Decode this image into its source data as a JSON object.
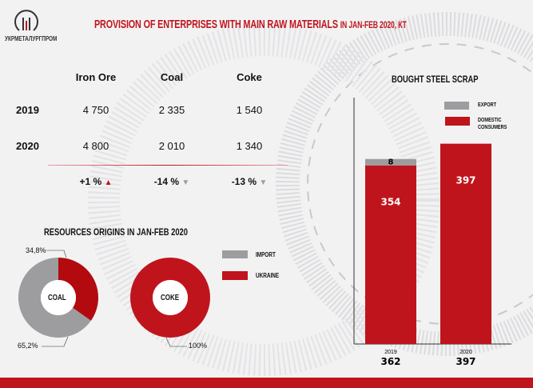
{
  "header": {
    "logo_text": "УКРМЕТАЛУРГПРОМ",
    "title_main": "PROVISION OF ENTERPRISES WITH MAIN RAW MATERIALS",
    "title_suffix": "IN JAN-FEB 2020, КТ"
  },
  "table": {
    "columns": [
      "Iron Ore",
      "Coal",
      "Coke"
    ],
    "rows": [
      {
        "year": "2019",
        "values": [
          "4 750",
          "2 335",
          "1 540"
        ]
      },
      {
        "year": "2020",
        "values": [
          "4 800",
          "2 010",
          "1 340"
        ]
      }
    ],
    "changes": [
      {
        "text": "+1 %",
        "dir": "up"
      },
      {
        "text": "-14 %",
        "dir": "down"
      },
      {
        "text": "-13 %",
        "dir": "down"
      }
    ]
  },
  "colors": {
    "red": "#c0141c",
    "gray": "#9d9d9f",
    "up": "#c0141c",
    "down": "#9d9d9f"
  },
  "chart_data": [
    {
      "type": "pie",
      "title": "RESOURCES ORIGINS IN JAN-FEB 2020",
      "name": "COAL",
      "slices": [
        {
          "label": "UKRAINE",
          "value": 34.8,
          "text": "34,8%"
        },
        {
          "label": "IMPORT",
          "value": 65.2,
          "text": "65,2%"
        }
      ]
    },
    {
      "type": "pie",
      "name": "COKE",
      "slices": [
        {
          "label": "UKRAINE",
          "value": 100,
          "text": "100%"
        }
      ]
    },
    {
      "type": "bar",
      "stacked": true,
      "title": "BOUGHT STEEL SCRAP",
      "categories": [
        "2019",
        "2020"
      ],
      "totals": [
        "362",
        "397"
      ],
      "series": [
        {
          "name": "DOMESTIC CONSUMERS",
          "values": [
            354,
            397
          ]
        },
        {
          "name": "EXPORT",
          "values": [
            8,
            0
          ]
        }
      ],
      "ylim": [
        0,
        420
      ]
    }
  ],
  "legend": {
    "import": "IMPORT",
    "ukraine": "UKRAINE",
    "export": "EXPORT",
    "domestic_1": "DOMESTIC",
    "domestic_2": "CONSUMERS"
  }
}
